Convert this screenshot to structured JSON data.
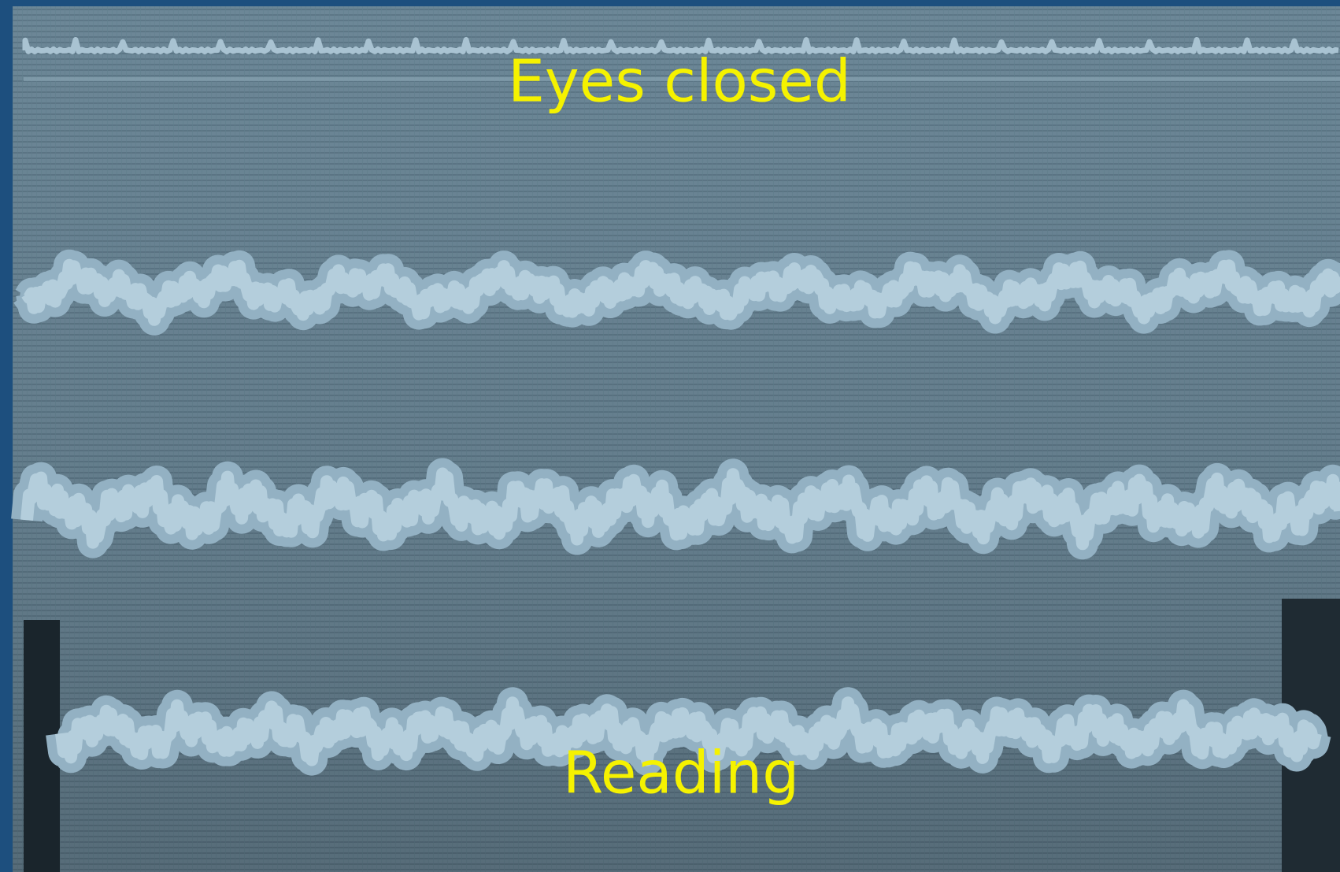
{
  "labels": {
    "top": "Eyes closed",
    "bottom": "Reading"
  }
}
